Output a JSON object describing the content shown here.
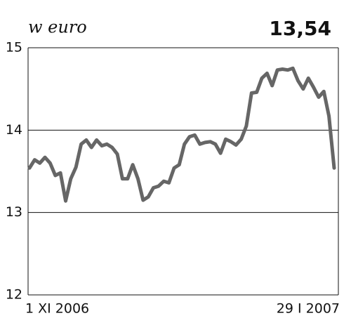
{
  "chart_data": {
    "type": "line",
    "title": "w euro",
    "annotation": "13,54",
    "categories": [
      "1 XI 2006",
      null,
      null,
      null,
      null,
      null,
      null,
      null,
      null,
      null,
      null,
      null,
      null,
      null,
      null,
      null,
      null,
      null,
      null,
      null,
      null,
      null,
      null,
      null,
      null,
      null,
      null,
      null,
      null,
      null,
      null,
      null,
      null,
      null,
      null,
      null,
      null,
      null,
      null,
      null,
      null,
      null,
      null,
      null,
      null,
      null,
      null,
      null,
      null,
      null,
      null,
      null,
      null,
      null,
      null,
      null,
      null,
      null,
      null,
      "29 I 2007"
    ],
    "values": [
      13.54,
      13.64,
      13.6,
      13.67,
      13.6,
      13.45,
      13.48,
      13.14,
      13.41,
      13.55,
      13.83,
      13.88,
      13.79,
      13.88,
      13.81,
      13.83,
      13.79,
      13.71,
      13.41,
      13.41,
      13.58,
      13.41,
      13.15,
      13.19,
      13.3,
      13.32,
      13.38,
      13.36,
      13.54,
      13.58,
      13.83,
      13.92,
      13.94,
      13.83,
      13.85,
      13.86,
      13.83,
      13.72,
      13.89,
      13.86,
      13.82,
      13.89,
      14.05,
      14.45,
      14.46,
      14.63,
      14.69,
      14.54,
      14.73,
      14.74,
      14.73,
      14.75,
      14.6,
      14.5,
      14.63,
      14.52,
      14.4,
      14.47,
      14.17,
      13.54
    ],
    "color": "#666666",
    "ylim": [
      12,
      15
    ],
    "yticks": [
      12,
      13,
      14,
      15
    ],
    "grid": true
  }
}
